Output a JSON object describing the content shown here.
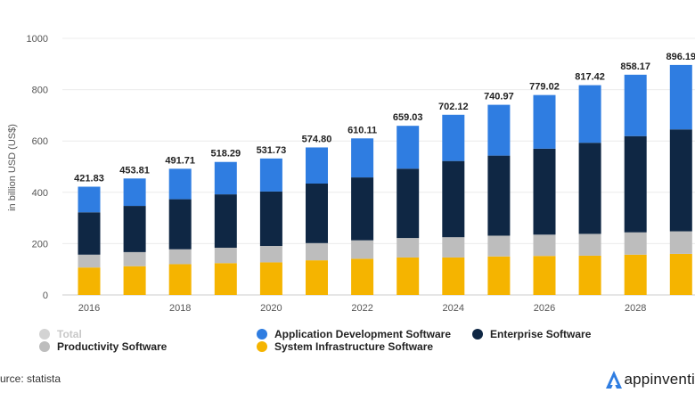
{
  "chart_data": {
    "type": "bar",
    "stacked": true,
    "ylabel": "in billion USD (US$)",
    "ylim": [
      0,
      1000
    ],
    "yticks": [
      0,
      200,
      400,
      600,
      800,
      1000
    ],
    "categories": [
      "2016",
      "2017",
      "2018",
      "2019",
      "2020",
      "2021",
      "2022",
      "2023",
      "2024",
      "2025",
      "2026",
      "2027",
      "2028",
      "2029"
    ],
    "xtick_labels": [
      "2016",
      "2018",
      "2020",
      "2022",
      "2024",
      "2026",
      "2028"
    ],
    "totals": [
      421.83,
      453.81,
      491.71,
      518.29,
      531.73,
      574.8,
      610.11,
      659.03,
      702.12,
      740.97,
      779.02,
      817.42,
      858.17,
      896.19
    ],
    "total_labels": [
      "421.83",
      "453.81",
      "491.71",
      "518.29",
      "531.73",
      "574.80",
      "610.11",
      "659.03",
      "702.12",
      "740.97",
      "779.02",
      "817.42",
      "858.17",
      "896.19"
    ],
    "series": [
      {
        "name": "System Infrastructure Software",
        "color": "#f5b400",
        "values": [
          107,
          112,
          120,
          124,
          127,
          135,
          141,
          146,
          146,
          150,
          152,
          153,
          157,
          160
        ]
      },
      {
        "name": "Productivity Software",
        "color": "#bdbdbd",
        "values": [
          50,
          55,
          58,
          60,
          64,
          67,
          72,
          76,
          79,
          81,
          83,
          85,
          87,
          88
        ]
      },
      {
        "name": "Enterprise Software",
        "color": "#0f2744",
        "values": [
          165,
          180,
          195,
          208,
          212,
          232,
          245,
          270,
          297,
          312,
          335,
          355,
          375,
          397
        ]
      },
      {
        "name": "Application Development Software",
        "color": "#2f7de1",
        "values": [
          99.83,
          106.81,
          118.71,
          126.29,
          128.73,
          140.8,
          152.11,
          167.03,
          180.12,
          197.97,
          209.02,
          224.42,
          239.17,
          251.19
        ]
      }
    ]
  },
  "legend": {
    "items": [
      {
        "name": "Total",
        "color": "#d3d3d3",
        "faded": true
      },
      {
        "name": "Application Development Software",
        "color": "#2f7de1",
        "faded": false
      },
      {
        "name": "Enterprise Software",
        "color": "#0f2744",
        "faded": false
      },
      {
        "name": "Productivity Software",
        "color": "#bdbdbd",
        "faded": false
      },
      {
        "name": "System Infrastructure Software",
        "color": "#f5b400",
        "faded": false
      }
    ]
  },
  "footer": {
    "source": "urce: statista",
    "brand": "appinventi"
  }
}
